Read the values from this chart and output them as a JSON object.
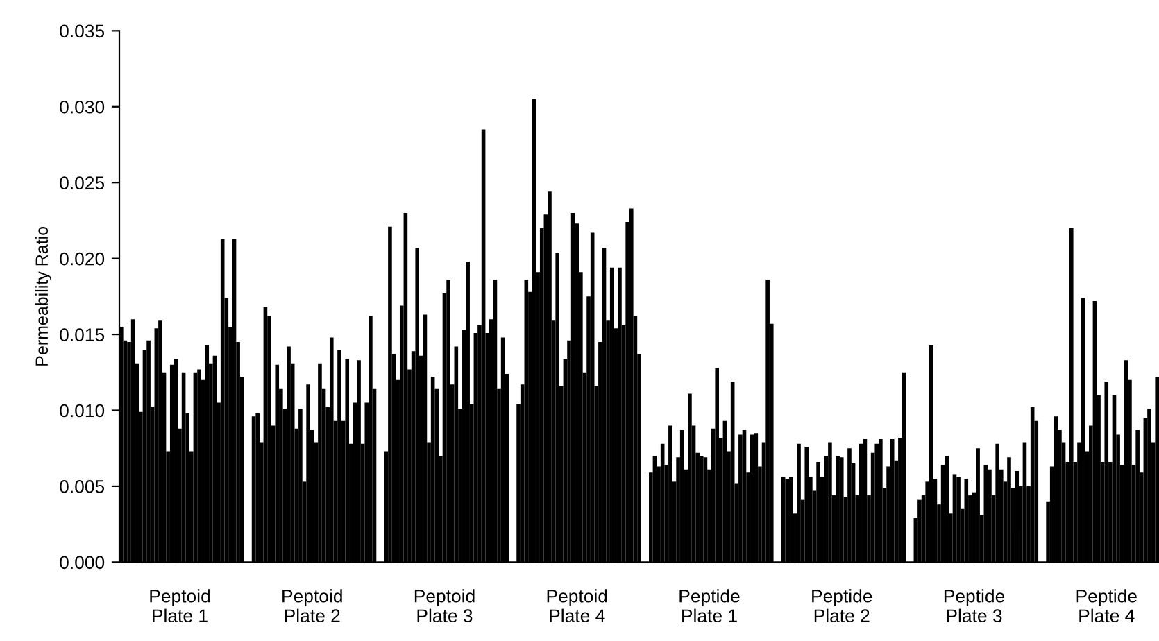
{
  "chart_data": {
    "type": "bar",
    "ylabel": "Permeability Ratio",
    "color": "#000000",
    "categories": [
      null,
      null,
      null,
      null,
      null,
      null,
      null,
      null,
      null,
      null,
      null,
      null,
      null,
      null,
      null,
      "Peptoid\nPlate 1",
      null,
      null,
      null,
      null,
      null,
      null,
      null,
      null,
      null,
      null,
      null,
      null,
      null,
      null,
      null,
      null,
      null,
      null,
      null,
      null,
      null,
      null,
      null,
      null,
      null,
      null,
      null,
      null,
      null,
      null,
      null,
      null,
      null,
      "Peptoid\nPlate 2",
      null,
      null,
      null,
      null,
      null,
      null,
      null,
      null,
      null,
      null,
      null,
      null,
      null,
      null,
      null,
      null,
      null,
      null,
      null,
      null,
      null,
      null,
      null,
      null,
      null,
      null,
      null,
      null,
      null,
      null,
      null,
      null,
      null,
      "Peptoid\nPlate 3",
      null,
      null,
      null,
      null,
      null,
      null,
      null,
      null,
      null,
      null,
      null,
      null,
      null,
      null,
      null,
      null,
      null,
      null,
      null,
      null,
      null,
      null,
      null,
      null,
      null,
      null,
      null,
      null,
      null,
      null,
      null,
      null,
      null,
      "Peptoid\nPlate 4",
      null,
      null,
      null,
      null,
      null,
      null,
      null,
      null,
      null,
      null,
      null,
      null,
      null,
      null,
      null,
      null,
      null,
      null,
      null,
      null,
      null,
      null,
      null,
      null,
      null,
      null,
      null,
      null,
      null,
      null,
      null,
      null,
      null,
      "Peptide\nPlate 1",
      null,
      null,
      null,
      null,
      null,
      null,
      null,
      null,
      null,
      null,
      null,
      null,
      null,
      null,
      null,
      null,
      null,
      null,
      null,
      null,
      null,
      null,
      null,
      null,
      null,
      null,
      null,
      null,
      null,
      null,
      null,
      null,
      null,
      "Peptide\nPlate 2",
      null,
      null,
      null,
      null,
      null,
      null,
      null,
      null,
      null,
      null,
      null,
      null,
      null,
      null,
      null,
      null,
      null,
      null,
      null,
      null,
      null,
      null,
      null,
      null,
      null,
      null,
      null,
      null,
      null,
      null,
      null,
      null,
      null,
      "Peptide\nPlate 3",
      null,
      null,
      null,
      null,
      null,
      null,
      null,
      null,
      null,
      null,
      null,
      null,
      null,
      null,
      null,
      null,
      null,
      null,
      null,
      null,
      null,
      null,
      null,
      null,
      null,
      null,
      null,
      null,
      null,
      null,
      null,
      null,
      null,
      "Peptide\nPlate 4",
      null,
      null,
      null,
      null,
      null,
      null,
      null,
      null,
      null,
      null,
      null,
      null,
      null
    ],
    "values": [
      0.0155,
      0.0146,
      0.0145,
      0.016,
      0.0131,
      0.0099,
      0.014,
      0.0146,
      0.0102,
      0.0154,
      0.0159,
      0.0125,
      0.0073,
      0.013,
      0.0134,
      0.0088,
      0.0125,
      0.0098,
      0.0073,
      0.0125,
      0.0127,
      0.012,
      0.0143,
      0.0131,
      0.0136,
      0.0105,
      0.0213,
      0.0174,
      0.0155,
      0.0213,
      0.0145,
      0.0122,
      null,
      null,
      0.0096,
      0.0098,
      0.0079,
      0.0168,
      0.0162,
      0.009,
      0.013,
      0.0114,
      0.0101,
      0.0142,
      0.0131,
      0.0088,
      0.0101,
      0.0053,
      0.0117,
      0.0087,
      0.0079,
      0.0131,
      0.0114,
      0.0102,
      0.0148,
      0.0093,
      0.014,
      0.0093,
      0.0134,
      0.0078,
      0.0105,
      0.0133,
      0.0078,
      0.0105,
      0.0162,
      0.0114,
      null,
      null,
      0.0073,
      0.0221,
      0.0137,
      0.012,
      0.0169,
      0.023,
      0.0127,
      0.0139,
      0.0207,
      0.0136,
      0.0163,
      0.0079,
      0.0122,
      0.0114,
      0.007,
      0.0177,
      0.0186,
      0.0117,
      0.0142,
      0.0101,
      0.0153,
      0.0198,
      0.0104,
      0.0151,
      0.0156,
      0.0285,
      0.0151,
      0.016,
      0.0186,
      0.0114,
      0.0148,
      0.0124,
      null,
      null,
      0.0104,
      0.0117,
      0.0186,
      0.0178,
      0.0305,
      0.0191,
      0.022,
      0.0229,
      0.0244,
      0.0159,
      0.0204,
      0.0116,
      0.0134,
      0.0146,
      0.023,
      0.0223,
      0.0191,
      0.0125,
      0.0175,
      0.0217,
      0.0116,
      0.0145,
      0.0207,
      0.0159,
      0.0194,
      0.0154,
      0.0194,
      0.0156,
      0.0224,
      0.0233,
      0.0162,
      0.0137,
      null,
      null,
      0.0059,
      0.007,
      0.0063,
      0.0078,
      0.0064,
      0.009,
      0.0053,
      0.0069,
      0.0087,
      0.0061,
      0.0111,
      0.009,
      0.0072,
      0.007,
      0.0069,
      0.0061,
      0.0088,
      0.0128,
      0.0082,
      0.0093,
      0.0073,
      0.0119,
      0.0052,
      0.0084,
      0.0087,
      0.0059,
      0.0084,
      0.0085,
      0.0063,
      0.0079,
      0.0186,
      0.0157,
      null,
      null,
      0.0056,
      0.0055,
      0.0056,
      0.0032,
      0.0078,
      0.0041,
      0.0076,
      0.0056,
      0.0047,
      0.0066,
      0.0056,
      0.007,
      0.0079,
      0.0044,
      0.007,
      0.0069,
      0.0043,
      0.0075,
      0.0065,
      0.0044,
      0.0078,
      0.0081,
      0.0044,
      0.0072,
      0.0078,
      0.0081,
      0.0049,
      0.0063,
      0.0081,
      0.0067,
      0.0082,
      0.0125,
      null,
      null,
      0.0029,
      0.0041,
      0.0044,
      0.0053,
      0.0143,
      0.0055,
      0.0038,
      0.0064,
      0.007,
      0.0032,
      0.0058,
      0.0056,
      0.0035,
      0.0055,
      0.0044,
      0.0046,
      0.0075,
      0.0031,
      0.0064,
      0.0061,
      0.0044,
      0.0078,
      0.0061,
      0.0053,
      0.0069,
      0.0049,
      0.006,
      0.005,
      0.0079,
      0.005,
      0.0102,
      0.0093,
      null,
      null,
      0.004,
      0.0063,
      0.0096,
      0.0087,
      0.0079,
      0.0066,
      0.022,
      0.0066,
      0.0079,
      0.0174,
      0.0073,
      0.009,
      0.0172,
      0.011,
      0.0066,
      0.0119,
      0.0066,
      0.011,
      0.0084,
      0.0064,
      0.0133,
      0.012,
      0.0064,
      0.0087,
      0.0059,
      0.0095,
      0.0101,
      0.0079,
      0.0122
    ],
    "ylim": [
      0,
      0.035
    ],
    "yticks": [
      {
        "value": 0,
        "label": "0.000"
      },
      {
        "value": 0.005,
        "label": "0.005"
      },
      {
        "value": 0.01,
        "label": "0.010"
      },
      {
        "value": 0.015,
        "label": "0.015"
      },
      {
        "value": 0.02,
        "label": "0.020"
      },
      {
        "value": 0.025,
        "label": "0.025"
      },
      {
        "value": 0.03,
        "label": "0.030"
      },
      {
        "value": 0.035,
        "label": "0.035"
      }
    ],
    "grid": false,
    "legend": false
  }
}
